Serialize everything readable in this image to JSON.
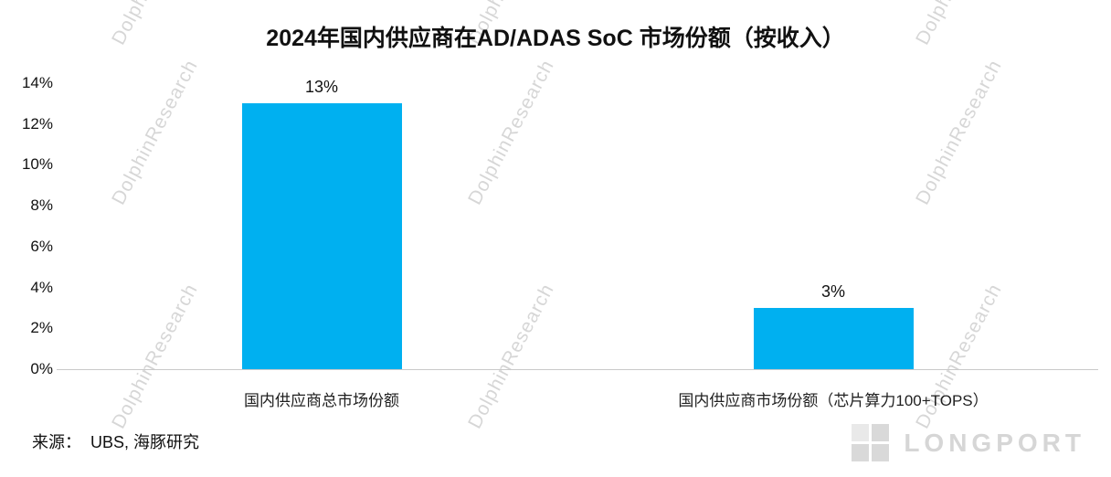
{
  "chart_data": {
    "type": "bar",
    "title": "2024年国内供应商在AD/ADAS SoC 市场份额（按收入）",
    "categories": [
      "国内供应商总市场份额",
      "国内供应商市场份额（芯片算力100+TOPS）"
    ],
    "values": [
      13,
      3
    ],
    "value_labels": [
      "13%",
      "3%"
    ],
    "xlabel": "",
    "ylabel": "",
    "ylim": [
      0,
      14
    ],
    "ytick_step": 2,
    "ytick_labels": [
      "0%",
      "2%",
      "4%",
      "6%",
      "8%",
      "10%",
      "12%",
      "14%"
    ],
    "bar_color": "#00b0f0",
    "grid": false,
    "legend": false
  },
  "source": {
    "label": "来源：",
    "value": "UBS, 海豚研究"
  },
  "watermark": {
    "text": "DolphinResearch"
  },
  "brand": {
    "logo_text": "LONGPORT"
  }
}
